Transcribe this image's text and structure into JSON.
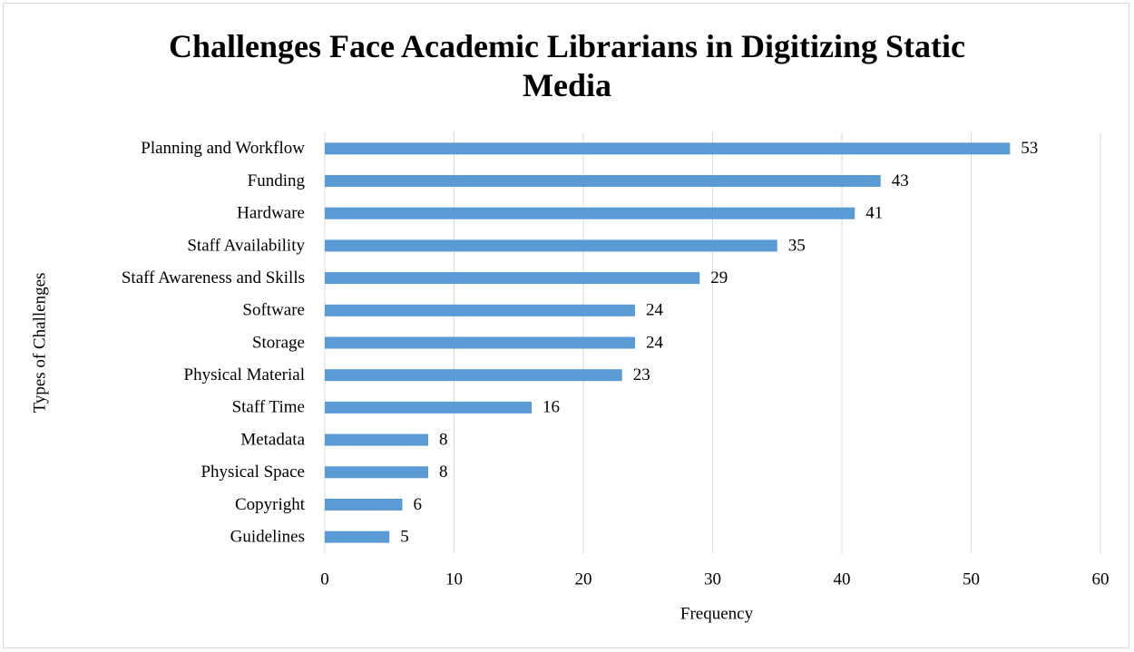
{
  "chart_data": {
    "type": "bar",
    "orientation": "horizontal",
    "title": "Challenges Face Academic Librarians in Digitizing Static Media",
    "x_label": "Frequency",
    "y_label": "Types of Challenges",
    "categories": [
      "Planning and Workflow",
      "Funding",
      "Hardware",
      "Staff Availability",
      "Staff Awareness and Skills",
      "Software",
      "Storage",
      "Physical Material",
      "Staff Time",
      "Metadata",
      "Physical Space",
      "Copyright",
      "Guidelines"
    ],
    "values": [
      53,
      43,
      41,
      35,
      29,
      24,
      24,
      23,
      16,
      8,
      8,
      6,
      5
    ],
    "color": "#5b9bd5",
    "xlim": [
      0,
      60
    ],
    "xticks": [
      0,
      10,
      20,
      30,
      40,
      50,
      60
    ],
    "grid": true
  }
}
